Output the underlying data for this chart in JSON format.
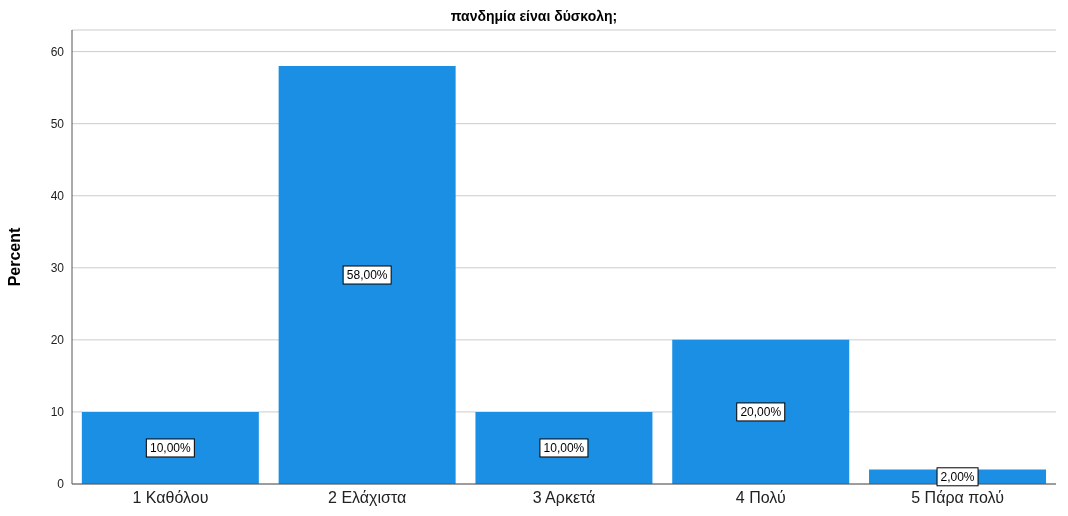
{
  "chart_data": {
    "type": "bar",
    "title": "πανδημία είναι δύσκολη;",
    "ylabel": "Percent",
    "categories": [
      "1 Καθόλου",
      "2 Ελάχιστα",
      "3 Αρκετά",
      "4 Πολύ",
      "5 Πάρα πολύ"
    ],
    "values": [
      10,
      58,
      10,
      20,
      2
    ],
    "color": "#1a8fe3",
    "value_labels": [
      "10,00%",
      "58,00%",
      "10,00%",
      "20,00%",
      "2,00%"
    ],
    "ylim": [
      0,
      63
    ],
    "yticks": [
      0,
      10,
      20,
      30,
      40,
      50,
      60
    ],
    "grid": "y"
  }
}
